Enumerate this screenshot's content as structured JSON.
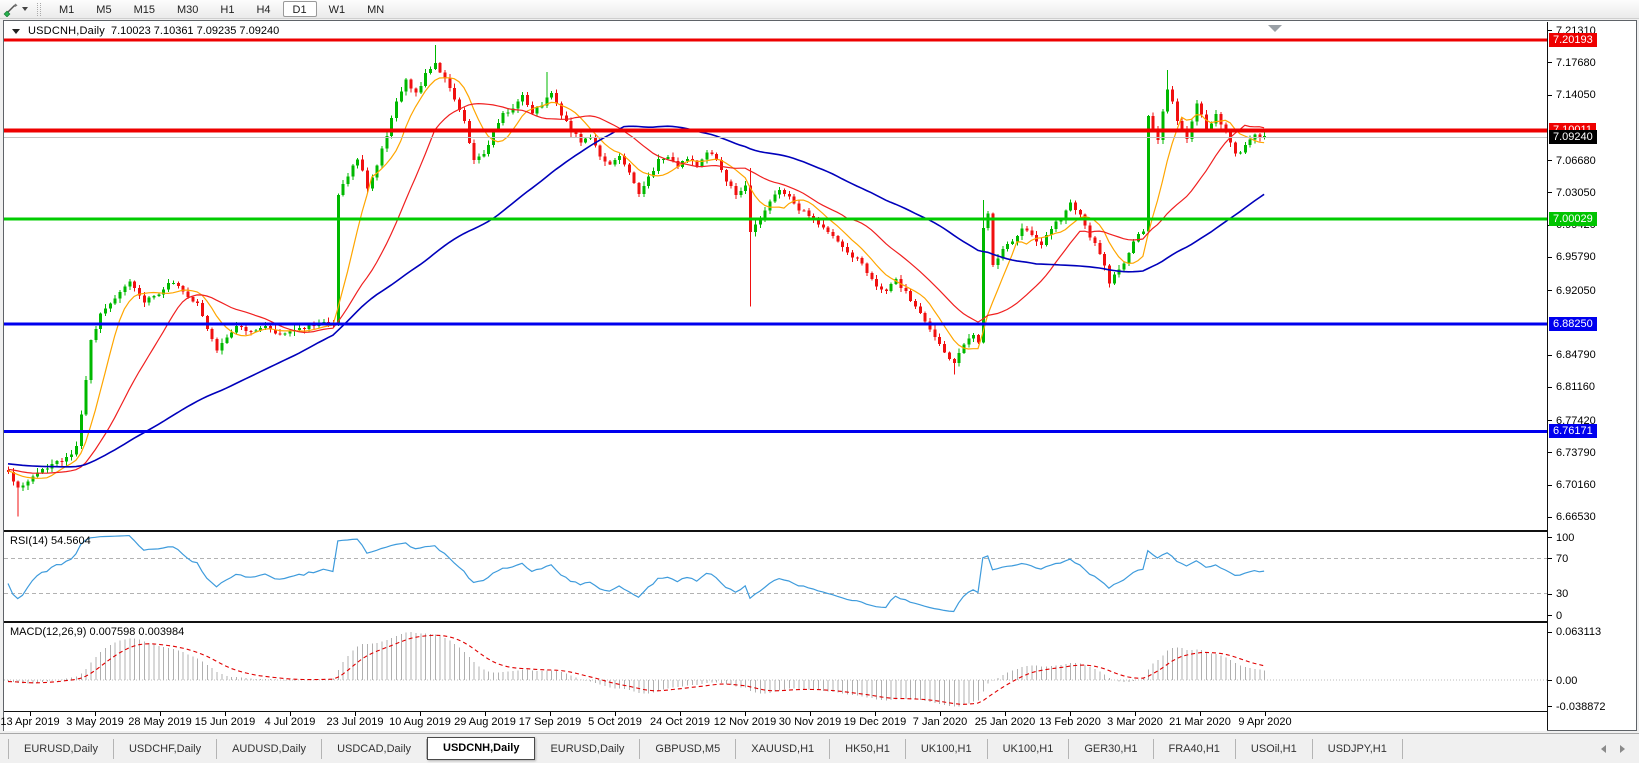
{
  "toolbar": {
    "timeframes": [
      "M1",
      "M5",
      "M15",
      "M30",
      "H1",
      "H4",
      "D1",
      "W1",
      "MN"
    ],
    "active_timeframe": "D1"
  },
  "chart": {
    "title": "USDCNH,Daily",
    "ohlc": "7.10023 7.10361 7.09235 7.09240",
    "rsi_label": "RSI(14) 54.5604",
    "macd_label": "MACD(12,26,9) 0.007598 0.003984",
    "price_ticks": [
      "7.21310",
      "7.17680",
      "7.14050",
      "7.06680",
      "7.03050",
      "6.99420",
      "6.95790",
      "6.92050",
      "6.84790",
      "6.81160",
      "6.77420",
      "6.73790",
      "6.70160",
      "6.66530"
    ],
    "rsi_ticks": [
      "100",
      "70",
      "30",
      "0"
    ],
    "macd_ticks": [
      "0.063113",
      "0.00",
      "-0.038872"
    ],
    "dates": [
      "13 Apr 2019",
      "3 May 2019",
      "28 May 2019",
      "15 Jun 2019",
      "4 Jul 2019",
      "23 Jul 2019",
      "10 Aug 2019",
      "29 Aug 2019",
      "17 Sep 2019",
      "5 Oct 2019",
      "24 Oct 2019",
      "12 Nov 2019",
      "30 Nov 2019",
      "19 Dec 2019",
      "7 Jan 2020",
      "25 Jan 2020",
      "13 Feb 2020",
      "3 Mar 2020",
      "21 Mar 2020",
      "9 Apr 2020"
    ],
    "hlines": [
      {
        "price": 7.20193,
        "label": "7.20193",
        "color": "#ee0000",
        "width": 3,
        "badge": "#ee0000"
      },
      {
        "price": 7.10011,
        "label": "7.10011",
        "color": "#ee0000",
        "width": 4,
        "badge": "#ee0000"
      },
      {
        "price": 7.0924,
        "label": "7.09240",
        "color": "#c4c4c4",
        "width": 1,
        "badge": "#000000"
      },
      {
        "price": 7.00029,
        "label": "7.00029",
        "color": "#00cc00",
        "width": 3,
        "badge": "#00c400"
      },
      {
        "price": 6.8825,
        "label": "6.88250",
        "color": "#0000ee",
        "width": 3,
        "badge": "#0000ee"
      },
      {
        "price": 6.76171,
        "label": "6.76171",
        "color": "#0000ee",
        "width": 3,
        "badge": "#0000ee"
      }
    ],
    "colors": {
      "up": "#00b800",
      "down": "#f01010",
      "ma_fast": "#ffa600",
      "ma_mid": "#f02020",
      "ma_slow": "#0000bb",
      "rsi": "#3e9bdc",
      "grid_dash": "#b2b2b2",
      "macd_hist": "#b0b0b0",
      "macd_signal": "#e00000",
      "marker": "#9aa0a6"
    }
  },
  "chart_data": {
    "type": "candlestick+indicators",
    "symbol": "USDCNH",
    "timeframe": "Daily",
    "ohlc_current": {
      "open": 7.10023,
      "high": 7.10361,
      "low": 7.09235,
      "close": 7.0924
    },
    "visible_bars": 260,
    "price_range_visible": [
      6.6653,
      7.2131
    ],
    "hline_levels": [
      7.20193,
      7.10011,
      7.0924,
      7.00029,
      6.8825,
      6.76171
    ],
    "rsi": {
      "period": 14,
      "last": 54.5604,
      "levels": [
        70,
        30
      ],
      "axis": [
        0,
        100
      ]
    },
    "macd": {
      "fast": 12,
      "slow": 26,
      "signal": 9,
      "last_main": 0.007598,
      "last_signal": 0.003984,
      "axis_max": 0.063113,
      "axis_min": -0.038872
    },
    "prehistory": {
      "bars": 60,
      "start_price": 6.735
    },
    "close_anchors": [
      [
        0,
        6.715
      ],
      [
        2,
        6.697
      ],
      [
        4,
        6.706
      ],
      [
        8,
        6.722
      ],
      [
        12,
        6.731
      ],
      [
        14,
        6.744
      ],
      [
        15,
        6.78
      ],
      [
        16,
        6.822
      ],
      [
        17,
        6.862
      ],
      [
        19,
        6.892
      ],
      [
        22,
        6.912
      ],
      [
        25,
        6.93
      ],
      [
        28,
        6.908
      ],
      [
        31,
        6.917
      ],
      [
        33,
        6.93
      ],
      [
        36,
        6.92
      ],
      [
        39,
        6.905
      ],
      [
        41,
        6.878
      ],
      [
        43,
        6.855
      ],
      [
        45,
        6.868
      ],
      [
        47,
        6.882
      ],
      [
        50,
        6.872
      ],
      [
        53,
        6.878
      ],
      [
        56,
        6.872
      ],
      [
        59,
        6.878
      ],
      [
        62,
        6.879
      ],
      [
        65,
        6.884
      ],
      [
        67,
        6.885
      ],
      [
        68,
        7.03
      ],
      [
        70,
        7.05
      ],
      [
        72,
        7.07
      ],
      [
        74,
        7.036
      ],
      [
        76,
        7.06
      ],
      [
        78,
        7.095
      ],
      [
        80,
        7.13
      ],
      [
        82,
        7.155
      ],
      [
        84,
        7.142
      ],
      [
        86,
        7.162
      ],
      [
        88,
        7.175
      ],
      [
        90,
        7.158
      ],
      [
        92,
        7.135
      ],
      [
        94,
        7.11
      ],
      [
        96,
        7.065
      ],
      [
        98,
        7.072
      ],
      [
        100,
        7.1
      ],
      [
        102,
        7.118
      ],
      [
        104,
        7.125
      ],
      [
        106,
        7.14
      ],
      [
        108,
        7.118
      ],
      [
        110,
        7.13
      ],
      [
        112,
        7.142
      ],
      [
        114,
        7.118
      ],
      [
        116,
        7.1
      ],
      [
        118,
        7.088
      ],
      [
        120,
        7.094
      ],
      [
        122,
        7.072
      ],
      [
        124,
        7.062
      ],
      [
        126,
        7.072
      ],
      [
        128,
        7.052
      ],
      [
        130,
        7.03
      ],
      [
        132,
        7.046
      ],
      [
        134,
        7.066
      ],
      [
        136,
        7.07
      ],
      [
        138,
        7.06
      ],
      [
        140,
        7.068
      ],
      [
        142,
        7.062
      ],
      [
        144,
        7.076
      ],
      [
        146,
        7.068
      ],
      [
        148,
        7.042
      ],
      [
        150,
        7.03
      ],
      [
        152,
        7.036
      ],
      [
        153,
        6.988
      ],
      [
        155,
        7.002
      ],
      [
        157,
        7.02
      ],
      [
        159,
        7.032
      ],
      [
        161,
        7.024
      ],
      [
        163,
        7.01
      ],
      [
        165,
        7.006
      ],
      [
        167,
        6.996
      ],
      [
        169,
        6.986
      ],
      [
        171,
        6.976
      ],
      [
        173,
        6.962
      ],
      [
        175,
        6.956
      ],
      [
        177,
        6.942
      ],
      [
        179,
        6.926
      ],
      [
        181,
        6.92
      ],
      [
        183,
        6.932
      ],
      [
        185,
        6.918
      ],
      [
        187,
        6.9
      ],
      [
        189,
        6.886
      ],
      [
        191,
        6.866
      ],
      [
        193,
        6.85
      ],
      [
        195,
        6.84
      ],
      [
        197,
        6.858
      ],
      [
        199,
        6.872
      ],
      [
        200,
        6.862
      ],
      [
        201,
        6.988
      ],
      [
        202,
        7.008
      ],
      [
        203,
        6.948
      ],
      [
        205,
        6.968
      ],
      [
        207,
        6.976
      ],
      [
        209,
        6.99
      ],
      [
        211,
        6.984
      ],
      [
        213,
        6.97
      ],
      [
        215,
        6.99
      ],
      [
        217,
        7.002
      ],
      [
        219,
        7.02
      ],
      [
        221,
        7.004
      ],
      [
        223,
        6.982
      ],
      [
        225,
        6.962
      ],
      [
        227,
        6.93
      ],
      [
        229,
        6.942
      ],
      [
        231,
        6.962
      ],
      [
        233,
        6.986
      ],
      [
        234,
        6.988
      ],
      [
        235,
        7.115
      ],
      [
        237,
        7.09
      ],
      [
        239,
        7.148
      ],
      [
        241,
        7.112
      ],
      [
        243,
        7.092
      ],
      [
        245,
        7.13
      ],
      [
        247,
        7.102
      ],
      [
        249,
        7.118
      ],
      [
        251,
        7.096
      ],
      [
        253,
        7.072
      ],
      [
        255,
        7.082
      ],
      [
        257,
        7.094
      ],
      [
        259,
        7.0924
      ]
    ],
    "special_wicks": [
      {
        "bar": 2,
        "low": 6.666
      },
      {
        "bar": 88,
        "high": 7.1965
      },
      {
        "bar": 111,
        "high": 7.166
      },
      {
        "bar": 153,
        "high": 7.058,
        "low": 6.902
      },
      {
        "bar": 195,
        "low": 6.8255
      },
      {
        "bar": 201,
        "high": 7.022
      },
      {
        "bar": 239,
        "high": 7.168
      }
    ]
  },
  "tabs": {
    "items": [
      "EURUSD,Daily",
      "USDCHF,Daily",
      "AUDUSD,Daily",
      "USDCAD,Daily",
      "USDCNH,Daily",
      "EURUSD,Daily",
      "GBPUSD,M5",
      "XAUUSD,H1",
      "HK50,H1",
      "UK100,H1",
      "UK100,H1",
      "GER30,H1",
      "FRA40,H1",
      "USOil,H1",
      "USDJPY,H1"
    ],
    "active_index": 4
  }
}
